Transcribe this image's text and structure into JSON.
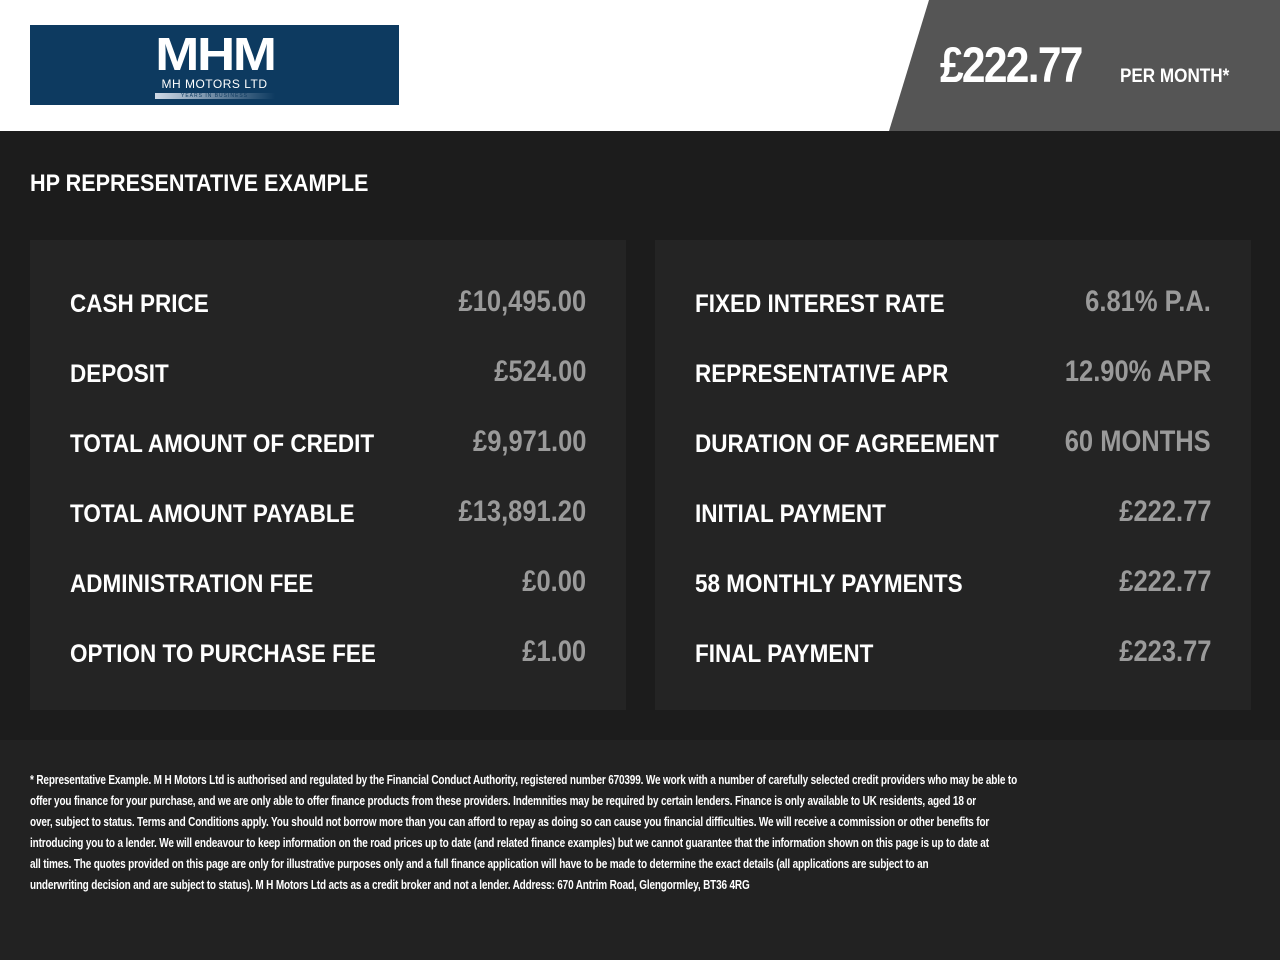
{
  "header": {
    "logo_text": "MHM",
    "logo_sub": "MH MOTORS LTD",
    "logo_tag": "YEARS IN BUSINESS",
    "price": "£222.77",
    "per_month": "PER MONTH*"
  },
  "title": "HP REPRESENTATIVE EXAMPLE",
  "left": [
    {
      "label": "CASH PRICE",
      "value": "£10,495.00"
    },
    {
      "label": "DEPOSIT",
      "value": "£524.00"
    },
    {
      "label": "TOTAL AMOUNT OF CREDIT",
      "value": "£9,971.00"
    },
    {
      "label": "TOTAL AMOUNT PAYABLE",
      "value": "£13,891.20"
    },
    {
      "label": "ADMINISTRATION FEE",
      "value": "£0.00"
    },
    {
      "label": "OPTION TO PURCHASE FEE",
      "value": "£1.00"
    }
  ],
  "right": [
    {
      "label": "FIXED INTEREST RATE",
      "value": "6.81% P.A."
    },
    {
      "label": "REPRESENTATIVE APR",
      "value": "12.90% APR"
    },
    {
      "label": "DURATION OF AGREEMENT",
      "value": "60 MONTHS"
    },
    {
      "label": "INITIAL PAYMENT",
      "value": "£222.77"
    },
    {
      "label": "58 MONTHLY PAYMENTS",
      "value": "£222.77"
    },
    {
      "label": "FINAL PAYMENT",
      "value": "£223.77"
    }
  ],
  "footer_lines": [
    "* Representative Example. M H Motors Ltd is authorised and regulated by the Financial Conduct Authority, registered number 670399. We work with a number of carefully selected credit providers who may be able to",
    "offer you finance for your purchase, and we are only able to offer finance products from these providers. Indemnities may be required by certain lenders. Finance is only available to UK residents, aged 18 or",
    "over, subject to status. Terms and Conditions apply. You should not borrow more than you can afford to repay as doing so can cause you financial difficulties. We will receive a commission or other benefits for",
    "introducing you to a lender. We will endeavour to keep information on the road prices up to date (and related finance examples) but we cannot guarantee that the information shown on this page is up to date at",
    "all times. The quotes provided on this page are only for illustrative purposes only and a full finance application will have to be made to determine the exact details (all applications are subject to an",
    "underwriting decision and are subject to status). M H Motors Ltd acts as a credit broker and not a lender. Address: 670 Antrim Road, Glengormley, BT36 4RG"
  ]
}
